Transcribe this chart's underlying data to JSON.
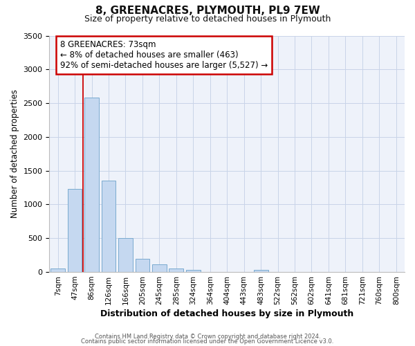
{
  "title": "8, GREENACRES, PLYMOUTH, PL9 7EW",
  "subtitle": "Size of property relative to detached houses in Plymouth",
  "xlabel": "Distribution of detached houses by size in Plymouth",
  "ylabel": "Number of detached properties",
  "bar_labels": [
    "7sqm",
    "47sqm",
    "86sqm",
    "126sqm",
    "166sqm",
    "205sqm",
    "245sqm",
    "285sqm",
    "324sqm",
    "364sqm",
    "404sqm",
    "443sqm",
    "483sqm",
    "522sqm",
    "562sqm",
    "602sqm",
    "641sqm",
    "681sqm",
    "721sqm",
    "760sqm",
    "800sqm"
  ],
  "bar_values": [
    50,
    1230,
    2580,
    1350,
    500,
    200,
    115,
    50,
    35,
    5,
    0,
    0,
    30,
    0,
    0,
    0,
    0,
    0,
    0,
    0,
    0
  ],
  "bar_color": "#c5d8f0",
  "bar_edgecolor": "#7aaacf",
  "vline_color": "#cc0000",
  "vline_x_idx": 1.5,
  "ylim": [
    0,
    3500
  ],
  "yticks": [
    0,
    500,
    1000,
    1500,
    2000,
    2500,
    3000,
    3500
  ],
  "annotation_text": "8 GREENACRES: 73sqm\n← 8% of detached houses are smaller (463)\n92% of semi-detached houses are larger (5,527) →",
  "annotation_box_edgecolor": "#cc0000",
  "footer_line1": "Contains HM Land Registry data © Crown copyright and database right 2024.",
  "footer_line2": "Contains public sector information licensed under the Open Government Licence v3.0.",
  "bg_color": "#eef2fa",
  "grid_color": "#c8d4e8"
}
